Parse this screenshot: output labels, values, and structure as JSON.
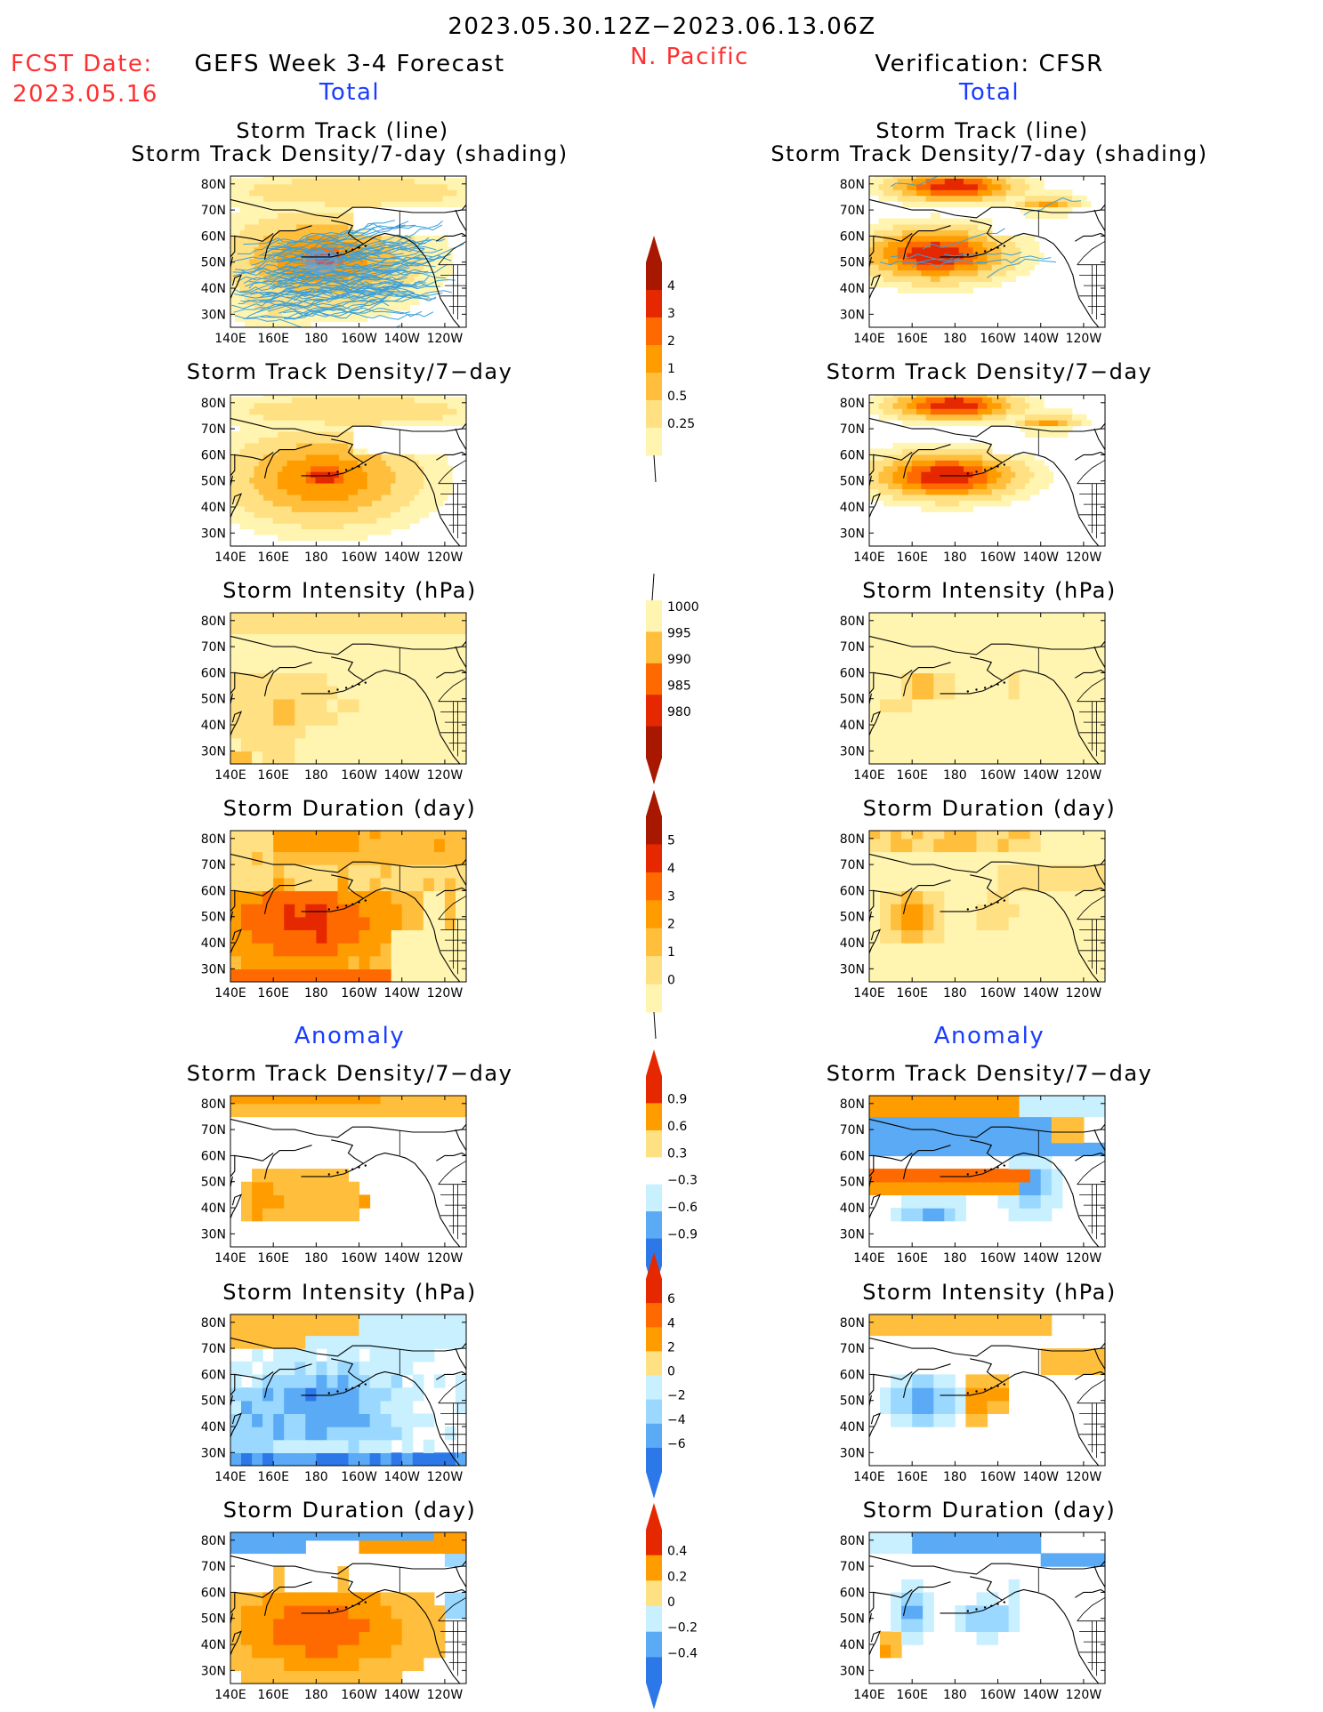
{
  "header": {
    "date_range": "2023.05.30.12Z−2023.06.13.06Z",
    "region": "N. Pacific",
    "fcst_label": "FCST Date:",
    "fcst_date": "2023.05.16",
    "forecast_title": "GEFS Week 3-4 Forecast",
    "verification_title": "Verification: CFSR"
  },
  "sections": {
    "total": "Total",
    "anomaly": "Anomaly"
  },
  "axes": {
    "lat_ticks": [
      "80N",
      "70N",
      "60N",
      "50N",
      "40N",
      "30N"
    ],
    "lon_ticks": [
      "140E",
      "160E",
      "180",
      "160W",
      "140W",
      "120W"
    ]
  },
  "panel_titles": {
    "track_line": "Storm Track (line)",
    "track_density_shading": "Storm Track Density/7-day (shading)",
    "track_density": "Storm Track Density/7−day",
    "intensity": "Storm Intensity (hPa)",
    "duration": "Storm Duration (day)"
  },
  "colors": {
    "scale_warm": [
      "#fff5b0",
      "#ffe082",
      "#ffbf3c",
      "#ff9c00",
      "#ff6a00",
      "#e62800",
      "#a81800"
    ],
    "scale_cool": [
      "#c8f0ff",
      "#9ad8ff",
      "#5aaaf5",
      "#2d78e8",
      "#1450d2"
    ],
    "track_line": "#3aa0dc",
    "land_outline": "#000000"
  },
  "colorbars": [
    {
      "id": "density",
      "labels": [
        "4",
        "3",
        "2",
        "1",
        "0.5",
        "0.25"
      ]
    },
    {
      "id": "intensity",
      "labels": [
        "1000",
        "995",
        "990",
        "985",
        "980"
      ]
    },
    {
      "id": "duration",
      "labels": [
        "5",
        "4",
        "3",
        "2",
        "1",
        "0"
      ]
    },
    {
      "id": "density_anom",
      "labels": [
        "0.9",
        "0.6",
        "0.3",
        "−0.3",
        "−0.6",
        "−0.9"
      ]
    },
    {
      "id": "intensity_anom",
      "labels": [
        "6",
        "4",
        "2",
        "0",
        "−2",
        "−4",
        "−6"
      ]
    },
    {
      "id": "duration_anom",
      "labels": [
        "0.4",
        "0.2",
        "0",
        "−0.2",
        "−0.4"
      ]
    }
  ],
  "chart_data": [
    {
      "type": "heatmap",
      "panel": "forecast-total-track",
      "colorbar": "density",
      "blobs": [
        {
          "lon": 182,
          "lat": 50,
          "r_lon": 40,
          "r_lat": 16,
          "v": 2
        },
        {
          "lon": 183,
          "lat": 51,
          "r_lon": 14,
          "r_lat": 6,
          "v": 3
        },
        {
          "lon": 196,
          "lat": 76,
          "r_lon": 58,
          "r_lat": 6,
          "v": 1
        },
        {
          "lon": 160,
          "lat": 44,
          "r_lon": 22,
          "r_lat": 18,
          "v": 1
        }
      ],
      "overlay": "storm tracks"
    },
    {
      "type": "heatmap",
      "panel": "verify-total-track",
      "colorbar": "density",
      "blobs": [
        {
          "lon": 178,
          "lat": 78,
          "r_lon": 26,
          "r_lat": 5,
          "v": 3
        },
        {
          "lon": 170,
          "lat": 52,
          "r_lon": 30,
          "r_lat": 9,
          "v": 3
        },
        {
          "lon": 222,
          "lat": 69,
          "r_lon": 14,
          "r_lat": 5,
          "v": 2
        }
      ],
      "overlay": "storm tracks"
    },
    {
      "type": "heatmap",
      "panel": "forecast-total-density",
      "colorbar": "density",
      "blobs": [
        {
          "lon": 182,
          "lat": 50,
          "r_lon": 40,
          "r_lat": 16,
          "v": 2
        },
        {
          "lon": 183,
          "lat": 51,
          "r_lon": 14,
          "r_lat": 6,
          "v": 3
        },
        {
          "lon": 196,
          "lat": 76,
          "r_lon": 58,
          "r_lat": 6,
          "v": 1
        }
      ]
    },
    {
      "type": "heatmap",
      "panel": "verify-total-density",
      "colorbar": "density",
      "blobs": [
        {
          "lon": 178,
          "lat": 78,
          "r_lon": 26,
          "r_lat": 5,
          "v": 3
        },
        {
          "lon": 175,
          "lat": 51,
          "r_lon": 30,
          "r_lat": 8,
          "v": 3
        },
        {
          "lon": 222,
          "lat": 69,
          "r_lon": 14,
          "r_lat": 5,
          "v": 2
        }
      ]
    },
    {
      "type": "heatmap",
      "panel": "forecast-total-intensity",
      "colorbar": "intensity",
      "field": "forecast-intensity"
    },
    {
      "type": "heatmap",
      "panel": "verify-total-intensity",
      "colorbar": "intensity",
      "field": "verify-intensity"
    },
    {
      "type": "heatmap",
      "panel": "forecast-total-duration",
      "colorbar": "duration",
      "field": "forecast-duration"
    },
    {
      "type": "heatmap",
      "panel": "verify-total-duration",
      "colorbar": "duration",
      "field": "verify-duration"
    },
    {
      "type": "heatmap",
      "panel": "forecast-anomaly-density",
      "colorbar": "density_anom",
      "field": "forecast-density-anom"
    },
    {
      "type": "heatmap",
      "panel": "verify-anomaly-density",
      "colorbar": "density_anom",
      "field": "verify-density-anom"
    },
    {
      "type": "heatmap",
      "panel": "forecast-anomaly-intensity",
      "colorbar": "intensity_anom",
      "field": "forecast-intensity-anom"
    },
    {
      "type": "heatmap",
      "panel": "verify-anomaly-intensity",
      "colorbar": "intensity_anom",
      "field": "verify-intensity-anom"
    },
    {
      "type": "heatmap",
      "panel": "forecast-anomaly-duration",
      "colorbar": "duration_anom",
      "field": "forecast-duration-anom"
    },
    {
      "type": "heatmap",
      "panel": "verify-anomaly-duration",
      "colorbar": "duration_anom",
      "field": "verify-duration-anom"
    }
  ]
}
